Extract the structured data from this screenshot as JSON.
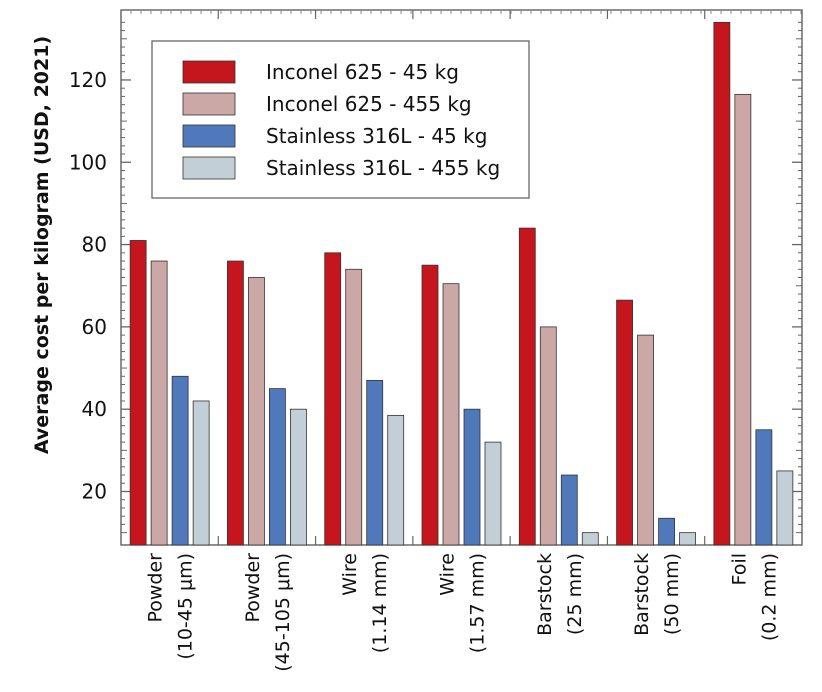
{
  "chart_data": {
    "type": "bar",
    "title": "",
    "xlabel": "",
    "ylabel": "Average cost per kilogram (USD, 2021)",
    "ylim": [
      7,
      137
    ],
    "yticks": [
      20,
      40,
      60,
      80,
      100,
      120
    ],
    "categories": [
      {
        "line1": "Powder",
        "line2": "(10-45 μm)"
      },
      {
        "line1": "Powder",
        "line2": "(45-105 μm)"
      },
      {
        "line1": "Wire",
        "line2": "(1.14 mm)"
      },
      {
        "line1": "Wire",
        "line2": "(1.57 mm)"
      },
      {
        "line1": "Barstock",
        "line2": "(25 mm)"
      },
      {
        "line1": "Barstock",
        "line2": "(50 mm)"
      },
      {
        "line1": "Foil",
        "line2": "(0.2 mm)"
      }
    ],
    "series": [
      {
        "name": "Inconel 625 - 45 kg",
        "color": "#c5161d",
        "values": [
          81,
          76,
          78,
          75,
          84,
          66.5,
          134
        ]
      },
      {
        "name": "Inconel 625 - 455 kg",
        "color": "#cba8a6",
        "values": [
          76,
          72,
          74,
          70.5,
          60,
          58,
          116.5
        ]
      },
      {
        "name": "Stainless 316L - 45 kg",
        "color": "#4f79bb",
        "values": [
          48,
          45,
          47,
          40,
          24,
          13.5,
          35
        ]
      },
      {
        "name": "Stainless 316L - 455 kg",
        "color": "#c3cfd6",
        "values": [
          42,
          40,
          38.5,
          32,
          10,
          10,
          25
        ]
      }
    ],
    "legend_position": "top-left",
    "grid": false
  }
}
